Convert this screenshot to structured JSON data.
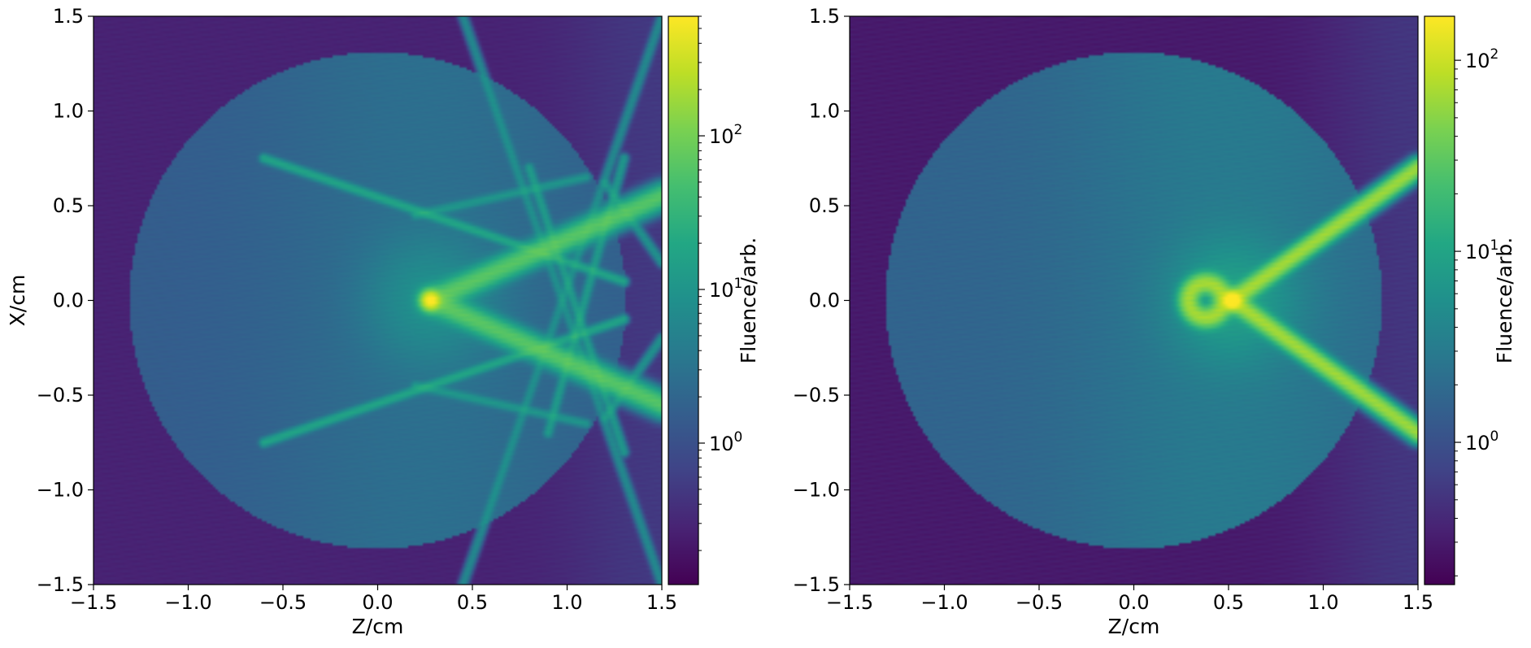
{
  "chart_data": [
    {
      "type": "heatmap",
      "xlabel": "Z/cm",
      "ylabel": "X/cm",
      "xlim": [
        -1.5,
        1.5
      ],
      "ylim": [
        -1.5,
        1.5
      ],
      "xticks": [
        "−1.5",
        "−1.0",
        "−0.5",
        "0.0",
        "0.5",
        "1.0",
        "1.5"
      ],
      "yticks": [
        "−1.5",
        "−1.0",
        "−0.5",
        "0.0",
        "0.5",
        "1.0",
        "1.5"
      ],
      "xtick_values": [
        -1.5,
        -1.0,
        -0.5,
        0.0,
        0.5,
        1.0,
        1.5
      ],
      "ytick_values": [
        -1.5,
        -1.0,
        -0.5,
        0.0,
        0.5,
        1.0,
        1.5
      ],
      "colormap": "viridis",
      "colorbar": {
        "label": "Fluence/arb.",
        "scale": "log",
        "range": [
          0.12,
          600
        ],
        "ticks": [
          {
            "value": 1,
            "base": "10",
            "exp": "0"
          },
          {
            "value": 10,
            "base": "10",
            "exp": "1"
          },
          {
            "value": 100,
            "base": "10",
            "exp": "2"
          }
        ]
      },
      "field": {
        "background": 0.28,
        "disk": {
          "center": [
            0.0,
            0.0
          ],
          "radius": 1.31,
          "value": 2.0
        },
        "focus": {
          "z": 0.28,
          "x": 0.0,
          "peak": 600
        },
        "beams": [
          {
            "from": [
              0.28,
              0.0
            ],
            "to": [
              1.5,
              0.55
            ],
            "value": 60,
            "width": 0.05
          },
          {
            "from": [
              0.28,
              0.0
            ],
            "to": [
              1.5,
              -0.55
            ],
            "value": 60,
            "width": 0.05
          }
        ],
        "streaks": [
          {
            "from": [
              -0.6,
              0.75
            ],
            "to": [
              1.3,
              0.1
            ],
            "value": 15
          },
          {
            "from": [
              -0.6,
              -0.75
            ],
            "to": [
              1.3,
              -0.1
            ],
            "value": 15
          },
          {
            "from": [
              0.2,
              0.45
            ],
            "to": [
              1.1,
              0.65
            ],
            "value": 8
          },
          {
            "from": [
              0.2,
              -0.45
            ],
            "to": [
              1.1,
              -0.65
            ],
            "value": 8
          },
          {
            "from": [
              0.8,
              0.7
            ],
            "to": [
              1.3,
              -0.8
            ],
            "value": 10
          },
          {
            "from": [
              0.9,
              -0.7
            ],
            "to": [
              1.3,
              0.75
            ],
            "value": 10
          },
          {
            "from": [
              0.45,
              1.5
            ],
            "to": [
              1.5,
              -1.5
            ],
            "value": 6
          },
          {
            "from": [
              0.45,
              -1.5
            ],
            "to": [
              1.5,
              1.5
            ],
            "value": 6
          },
          {
            "from": [
              1.2,
              0.62
            ],
            "to": [
              1.5,
              0.2
            ],
            "value": 8
          },
          {
            "from": [
              1.2,
              -0.62
            ],
            "to": [
              1.5,
              -0.2
            ],
            "value": 8
          }
        ]
      }
    },
    {
      "type": "heatmap",
      "xlabel": "Z/cm",
      "ylabel": "",
      "xlim": [
        -1.5,
        1.5
      ],
      "ylim": [
        -1.5,
        1.5
      ],
      "xticks": [
        "−1.5",
        "−1.0",
        "−0.5",
        "0.0",
        "0.5",
        "1.0",
        "1.5"
      ],
      "yticks": [
        "−1.5",
        "−1.0",
        "−0.5",
        "0.0",
        "0.5",
        "1.0",
        "1.5"
      ],
      "xtick_values": [
        -1.5,
        -1.0,
        -0.5,
        0.0,
        0.5,
        1.0,
        1.5
      ],
      "ytick_values": [
        -1.5,
        -1.0,
        -0.5,
        0.0,
        0.5,
        1.0,
        1.5
      ],
      "colormap": "viridis",
      "colorbar": {
        "label": "Fluence/arb.",
        "scale": "log",
        "range": [
          0.18,
          170
        ],
        "ticks": [
          {
            "value": 1,
            "base": "10",
            "exp": "0"
          },
          {
            "value": 10,
            "base": "10",
            "exp": "1"
          },
          {
            "value": 100,
            "base": "10",
            "exp": "2"
          }
        ]
      },
      "field": {
        "background": 0.3,
        "disk": {
          "center": [
            0.0,
            0.0
          ],
          "radius": 1.31,
          "value": 2.2
        },
        "focus": {
          "z": 0.52,
          "x": 0.0,
          "peak": 170
        },
        "hotspot": {
          "z": 0.38,
          "x": 0.0,
          "value": 60
        },
        "beams": [
          {
            "from": [
              0.52,
              0.0
            ],
            "to": [
              1.5,
              0.7
            ],
            "value": 60,
            "width": 0.04
          },
          {
            "from": [
              0.52,
              0.0
            ],
            "to": [
              1.5,
              -0.7
            ],
            "value": 60,
            "width": 0.04
          }
        ],
        "streaks": []
      }
    }
  ]
}
